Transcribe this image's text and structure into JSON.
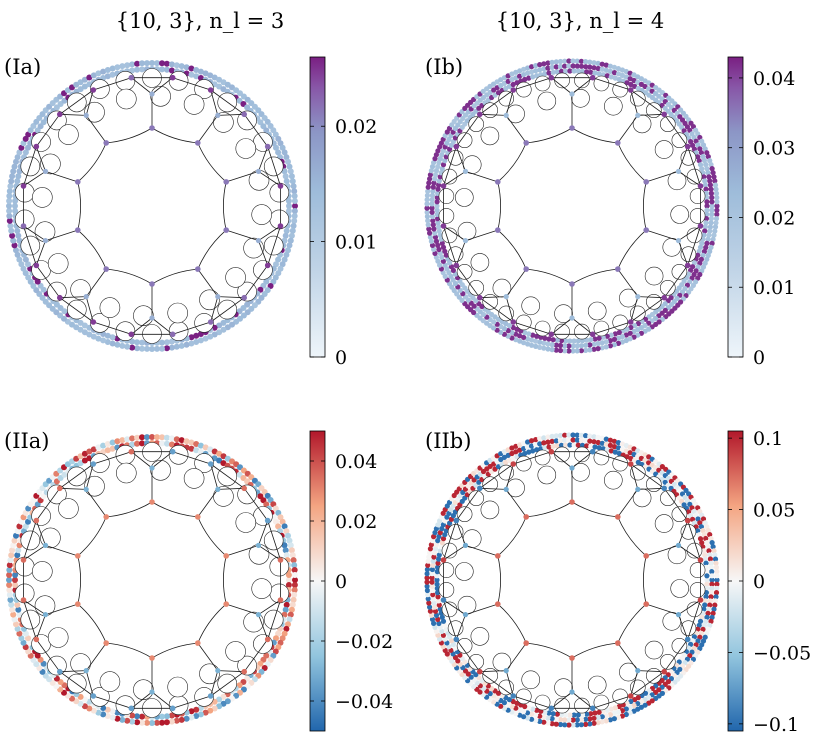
{
  "titles": {
    "left": "{10, 3},  n_l = 3",
    "right": "{10, 3},  n_l = 4"
  },
  "panels": [
    {
      "id": "Ia",
      "label": "(Ia)",
      "colormap": "purple",
      "colorbar_ticks": [
        "0",
        "0.01",
        "0.02"
      ],
      "colorbar_tick_values": [
        0,
        0.01,
        0.02
      ],
      "colorbar_range": [
        0,
        0.026
      ]
    },
    {
      "id": "Ib",
      "label": "(Ib)",
      "colormap": "purple",
      "colorbar_ticks": [
        "0",
        "0.01",
        "0.02",
        "0.03",
        "0.04"
      ],
      "colorbar_tick_values": [
        0,
        0.01,
        0.02,
        0.03,
        0.04
      ],
      "colorbar_range": [
        0,
        0.043
      ]
    },
    {
      "id": "IIa",
      "label": "(IIa)",
      "colormap": "diverging",
      "colorbar_ticks": [
        "−0.04",
        "−0.02",
        "0",
        "0.02",
        "0.04"
      ],
      "colorbar_tick_values": [
        -0.04,
        -0.02,
        0,
        0.02,
        0.04
      ],
      "colorbar_range": [
        -0.05,
        0.05
      ]
    },
    {
      "id": "IIb",
      "label": "(IIb)",
      "colormap": "diverging",
      "colorbar_ticks": [
        "−0.1",
        "−0.05",
        "0",
        "0.05",
        "0.1"
      ],
      "colorbar_tick_values": [
        -0.1,
        -0.05,
        0,
        0.05,
        0.1
      ],
      "colorbar_range": [
        -0.105,
        0.105
      ]
    }
  ],
  "colors": {
    "purple_low": "#eef5fa",
    "purple_mid": "#a7bedd",
    "purple_mid2": "#8c96c6",
    "purple_high": "#7a1f82",
    "diverging_neg": "#2166ac",
    "diverging_neg_mid": "#92c5de",
    "diverging_zero": "#f7f7f7",
    "diverging_pos_mid": "#f4a582",
    "diverging_pos": "#b2182b",
    "edge": "#1a1a1a"
  }
}
